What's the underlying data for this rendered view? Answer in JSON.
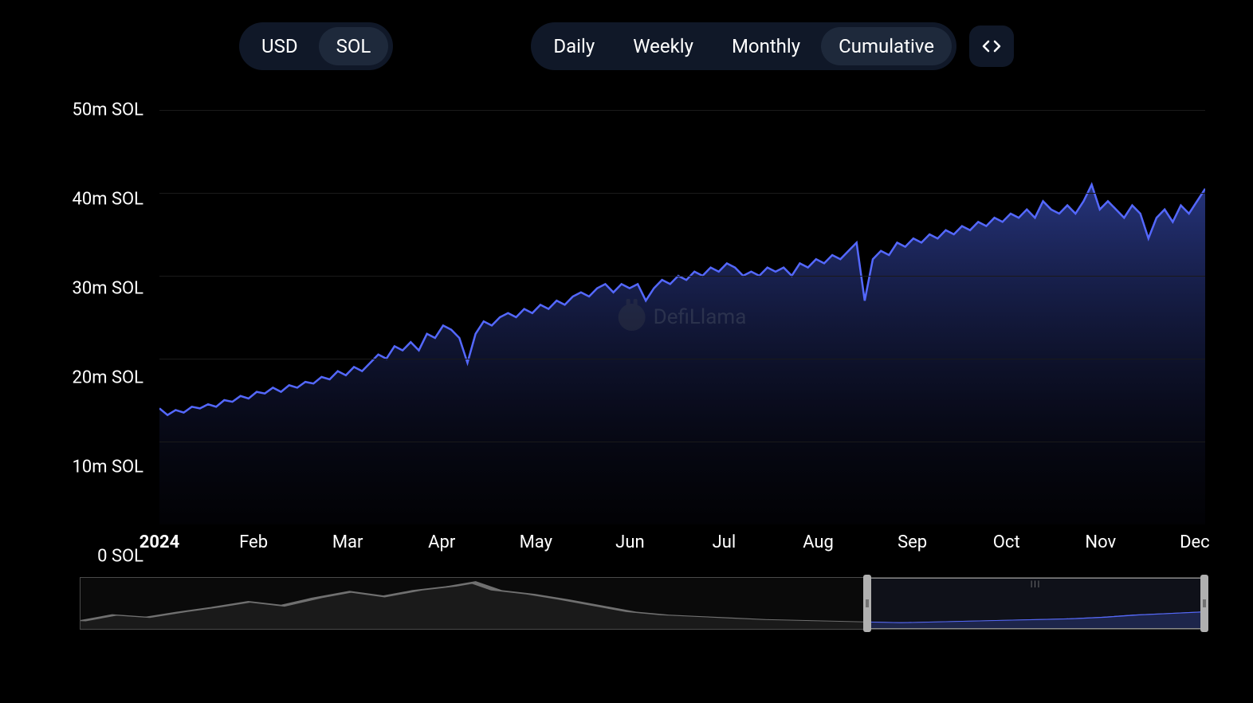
{
  "currency_toggle": {
    "options": [
      "USD",
      "SOL"
    ],
    "active": "SOL"
  },
  "period_toggle": {
    "options": [
      "Daily",
      "Weekly",
      "Monthly",
      "Cumulative"
    ],
    "active": "Cumulative"
  },
  "watermark": "DefiLlama",
  "chart": {
    "type": "area",
    "line_color": "#5468ff",
    "fill_gradient_top": "#2a3a8a",
    "fill_gradient_bottom": "#0a0a1a",
    "line_width": 2.5,
    "background_color": "#000000",
    "grid_color": "#1a1a1a",
    "y_axis": {
      "min": 0,
      "max": 50,
      "tick_step": 10,
      "unit": "m SOL",
      "labels": [
        "0 SOL",
        "10m SOL",
        "20m SOL",
        "30m SOL",
        "40m SOL",
        "50m SOL"
      ]
    },
    "x_axis": {
      "year_label": "2024",
      "labels": [
        "Feb",
        "Mar",
        "Apr",
        "May",
        "Jun",
        "Jul",
        "Aug",
        "Sep",
        "Oct",
        "Nov",
        "Dec"
      ]
    },
    "series": [
      {
        "x": 0,
        "y": 14.0
      },
      {
        "x": 1,
        "y": 13.2
      },
      {
        "x": 2,
        "y": 13.8
      },
      {
        "x": 3,
        "y": 13.5
      },
      {
        "x": 4,
        "y": 14.2
      },
      {
        "x": 5,
        "y": 14.0
      },
      {
        "x": 6,
        "y": 14.5
      },
      {
        "x": 7,
        "y": 14.2
      },
      {
        "x": 8,
        "y": 15.0
      },
      {
        "x": 9,
        "y": 14.8
      },
      {
        "x": 10,
        "y": 15.5
      },
      {
        "x": 11,
        "y": 15.2
      },
      {
        "x": 12,
        "y": 16.0
      },
      {
        "x": 13,
        "y": 15.8
      },
      {
        "x": 14,
        "y": 16.5
      },
      {
        "x": 15,
        "y": 16.0
      },
      {
        "x": 16,
        "y": 16.8
      },
      {
        "x": 17,
        "y": 16.5
      },
      {
        "x": 18,
        "y": 17.2
      },
      {
        "x": 19,
        "y": 17.0
      },
      {
        "x": 20,
        "y": 17.8
      },
      {
        "x": 21,
        "y": 17.5
      },
      {
        "x": 22,
        "y": 18.5
      },
      {
        "x": 23,
        "y": 18.0
      },
      {
        "x": 24,
        "y": 19.0
      },
      {
        "x": 25,
        "y": 18.5
      },
      {
        "x": 26,
        "y": 19.5
      },
      {
        "x": 27,
        "y": 20.5
      },
      {
        "x": 28,
        "y": 20.0
      },
      {
        "x": 29,
        "y": 21.5
      },
      {
        "x": 30,
        "y": 21.0
      },
      {
        "x": 31,
        "y": 22.0
      },
      {
        "x": 32,
        "y": 21.0
      },
      {
        "x": 33,
        "y": 23.0
      },
      {
        "x": 34,
        "y": 22.5
      },
      {
        "x": 35,
        "y": 24.0
      },
      {
        "x": 36,
        "y": 23.5
      },
      {
        "x": 37,
        "y": 22.5
      },
      {
        "x": 38,
        "y": 19.5
      },
      {
        "x": 39,
        "y": 23.0
      },
      {
        "x": 40,
        "y": 24.5
      },
      {
        "x": 41,
        "y": 24.0
      },
      {
        "x": 42,
        "y": 25.0
      },
      {
        "x": 43,
        "y": 25.5
      },
      {
        "x": 44,
        "y": 25.0
      },
      {
        "x": 45,
        "y": 26.0
      },
      {
        "x": 46,
        "y": 25.5
      },
      {
        "x": 47,
        "y": 26.5
      },
      {
        "x": 48,
        "y": 26.0
      },
      {
        "x": 49,
        "y": 27.0
      },
      {
        "x": 50,
        "y": 26.5
      },
      {
        "x": 51,
        "y": 27.5
      },
      {
        "x": 52,
        "y": 28.0
      },
      {
        "x": 53,
        "y": 27.5
      },
      {
        "x": 54,
        "y": 28.5
      },
      {
        "x": 55,
        "y": 29.0
      },
      {
        "x": 56,
        "y": 28.0
      },
      {
        "x": 57,
        "y": 29.0
      },
      {
        "x": 58,
        "y": 28.5
      },
      {
        "x": 59,
        "y": 29.0
      },
      {
        "x": 60,
        "y": 27.0
      },
      {
        "x": 61,
        "y": 28.5
      },
      {
        "x": 62,
        "y": 29.5
      },
      {
        "x": 63,
        "y": 29.0
      },
      {
        "x": 64,
        "y": 30.0
      },
      {
        "x": 65,
        "y": 29.5
      },
      {
        "x": 66,
        "y": 30.5
      },
      {
        "x": 67,
        "y": 30.0
      },
      {
        "x": 68,
        "y": 31.0
      },
      {
        "x": 69,
        "y": 30.5
      },
      {
        "x": 70,
        "y": 31.5
      },
      {
        "x": 71,
        "y": 31.0
      },
      {
        "x": 72,
        "y": 30.0
      },
      {
        "x": 73,
        "y": 30.5
      },
      {
        "x": 74,
        "y": 30.0
      },
      {
        "x": 75,
        "y": 31.0
      },
      {
        "x": 76,
        "y": 30.5
      },
      {
        "x": 77,
        "y": 31.0
      },
      {
        "x": 78,
        "y": 30.0
      },
      {
        "x": 79,
        "y": 31.5
      },
      {
        "x": 80,
        "y": 31.0
      },
      {
        "x": 81,
        "y": 32.0
      },
      {
        "x": 82,
        "y": 31.5
      },
      {
        "x": 83,
        "y": 32.5
      },
      {
        "x": 84,
        "y": 32.0
      },
      {
        "x": 85,
        "y": 33.0
      },
      {
        "x": 86,
        "y": 34.0
      },
      {
        "x": 87,
        "y": 27.0
      },
      {
        "x": 88,
        "y": 32.0
      },
      {
        "x": 89,
        "y": 33.0
      },
      {
        "x": 90,
        "y": 32.5
      },
      {
        "x": 91,
        "y": 34.0
      },
      {
        "x": 92,
        "y": 33.5
      },
      {
        "x": 93,
        "y": 34.5
      },
      {
        "x": 94,
        "y": 34.0
      },
      {
        "x": 95,
        "y": 35.0
      },
      {
        "x": 96,
        "y": 34.5
      },
      {
        "x": 97,
        "y": 35.5
      },
      {
        "x": 98,
        "y": 35.0
      },
      {
        "x": 99,
        "y": 36.0
      },
      {
        "x": 100,
        "y": 35.5
      },
      {
        "x": 101,
        "y": 36.5
      },
      {
        "x": 102,
        "y": 36.0
      },
      {
        "x": 103,
        "y": 37.0
      },
      {
        "x": 104,
        "y": 36.5
      },
      {
        "x": 105,
        "y": 37.5
      },
      {
        "x": 106,
        "y": 37.0
      },
      {
        "x": 107,
        "y": 38.0
      },
      {
        "x": 108,
        "y": 37.0
      },
      {
        "x": 109,
        "y": 39.0
      },
      {
        "x": 110,
        "y": 38.0
      },
      {
        "x": 111,
        "y": 37.5
      },
      {
        "x": 112,
        "y": 38.5
      },
      {
        "x": 113,
        "y": 37.5
      },
      {
        "x": 114,
        "y": 39.0
      },
      {
        "x": 115,
        "y": 41.0
      },
      {
        "x": 116,
        "y": 38.0
      },
      {
        "x": 117,
        "y": 39.0
      },
      {
        "x": 118,
        "y": 38.0
      },
      {
        "x": 119,
        "y": 37.0
      },
      {
        "x": 120,
        "y": 38.5
      },
      {
        "x": 121,
        "y": 37.5
      },
      {
        "x": 122,
        "y": 34.5
      },
      {
        "x": 123,
        "y": 37.0
      },
      {
        "x": 124,
        "y": 38.0
      },
      {
        "x": 125,
        "y": 36.5
      },
      {
        "x": 126,
        "y": 38.5
      },
      {
        "x": 127,
        "y": 37.5
      },
      {
        "x": 128,
        "y": 39.0
      },
      {
        "x": 129,
        "y": 40.5
      }
    ]
  },
  "navigator": {
    "selection_start_pct": 70,
    "selection_end_pct": 100,
    "line_color": "#707070",
    "selected_line_color": "#5468ff",
    "series": [
      {
        "x": 0,
        "y": 10
      },
      {
        "x": 3,
        "y": 18
      },
      {
        "x": 6,
        "y": 15
      },
      {
        "x": 9,
        "y": 22
      },
      {
        "x": 12,
        "y": 28
      },
      {
        "x": 15,
        "y": 35
      },
      {
        "x": 18,
        "y": 30
      },
      {
        "x": 21,
        "y": 40
      },
      {
        "x": 24,
        "y": 48
      },
      {
        "x": 27,
        "y": 42
      },
      {
        "x": 30,
        "y": 50
      },
      {
        "x": 33,
        "y": 55
      },
      {
        "x": 35,
        "y": 60
      },
      {
        "x": 37,
        "y": 50
      },
      {
        "x": 40,
        "y": 45
      },
      {
        "x": 43,
        "y": 38
      },
      {
        "x": 46,
        "y": 30
      },
      {
        "x": 49,
        "y": 22
      },
      {
        "x": 52,
        "y": 18
      },
      {
        "x": 55,
        "y": 16
      },
      {
        "x": 58,
        "y": 14
      },
      {
        "x": 61,
        "y": 12
      },
      {
        "x": 64,
        "y": 11
      },
      {
        "x": 67,
        "y": 10
      },
      {
        "x": 70,
        "y": 9
      },
      {
        "x": 73,
        "y": 8
      },
      {
        "x": 76,
        "y": 9
      },
      {
        "x": 79,
        "y": 10
      },
      {
        "x": 82,
        "y": 11
      },
      {
        "x": 85,
        "y": 12
      },
      {
        "x": 88,
        "y": 13
      },
      {
        "x": 91,
        "y": 15
      },
      {
        "x": 94,
        "y": 18
      },
      {
        "x": 97,
        "y": 20
      },
      {
        "x": 100,
        "y": 22
      }
    ]
  }
}
